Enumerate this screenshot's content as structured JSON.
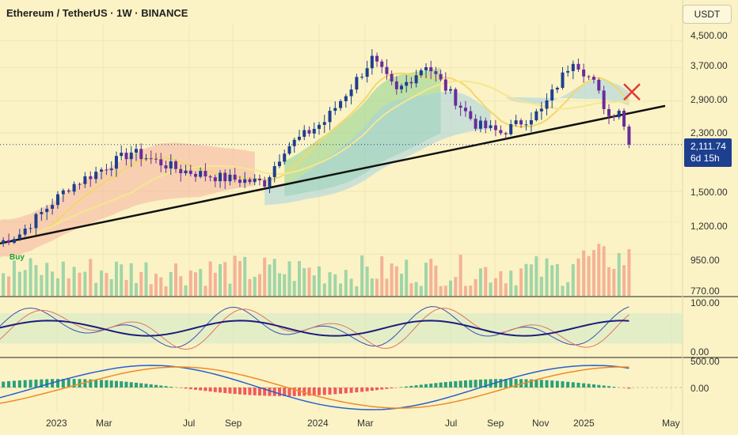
{
  "header": {
    "title": "Ethereum / TetherUS · 1W · BINANCE",
    "currency": "USDT"
  },
  "price_tag": {
    "value": "2,111.74",
    "countdown": "6d 15h"
  },
  "buy_label": "Buy",
  "colors": {
    "background": "#fbf3c5",
    "bull": "#1d3f8f",
    "bear": "#6a2c9a",
    "trendline": "#111111",
    "cloud_bull": "#8fd18a",
    "cloud_blue": "#9ed0e8",
    "cloud_red": "#f3a69a",
    "vol_up": "#8fcfa2",
    "vol_down": "#f2a68e",
    "stoch_k": "#3b4fb8",
    "stoch_d": "#e0745f",
    "rsi": "#1d1d7a",
    "macd": "#2a5fd0",
    "signal": "#f08a28",
    "hist_up": "#2aa07c",
    "hist_down": "#f05a5a",
    "x_mark": "#e03a3a"
  },
  "chart_data": {
    "type": "candlestick",
    "title": "Ethereum / TetherUS · 1W · BINANCE",
    "y_axis": {
      "scale": "log",
      "ticks": [
        "4,500.00",
        "3,700.00",
        "2,900.00",
        "2,300.00",
        "1,500.00",
        "1,200.00",
        "950.00",
        "770.00"
      ]
    },
    "x_axis": {
      "ticks": [
        "2023",
        "Mar",
        "Jul",
        "Sep",
        "2024",
        "Mar",
        "Jul",
        "Sep",
        "Nov",
        "2025",
        "May"
      ]
    },
    "stoch_axis": {
      "ticks": [
        "100.00",
        "0.00"
      ]
    },
    "macd_axis": {
      "ticks": [
        "500.00",
        "0.00"
      ]
    },
    "last_price": 2111.74,
    "key_points": [
      {
        "date": "2022-11-14",
        "price": 1100
      },
      {
        "date": "2023-01-16",
        "price": 1550
      },
      {
        "date": "2023-04-10",
        "price": 2000
      },
      {
        "date": "2023-06-19",
        "price": 1750
      },
      {
        "date": "2023-08-21",
        "price": 1650
      },
      {
        "date": "2023-10-16",
        "price": 1600
      },
      {
        "date": "2023-11-13",
        "price": 2050
      },
      {
        "date": "2024-01-08",
        "price": 2500
      },
      {
        "date": "2024-03-11",
        "price": 3950
      },
      {
        "date": "2024-04-15",
        "price": 3100
      },
      {
        "date": "2024-05-27",
        "price": 3800
      },
      {
        "date": "2024-08-05",
        "price": 2450
      },
      {
        "date": "2024-09-09",
        "price": 2300
      },
      {
        "date": "2024-11-04",
        "price": 2700
      },
      {
        "date": "2024-12-16",
        "price": 3950
      },
      {
        "date": "2025-01-13",
        "price": 3300
      },
      {
        "date": "2025-02-03",
        "price": 2600
      },
      {
        "date": "2025-02-17",
        "price": 2750
      },
      {
        "date": "2025-03-03",
        "price": 2111.74
      }
    ]
  }
}
